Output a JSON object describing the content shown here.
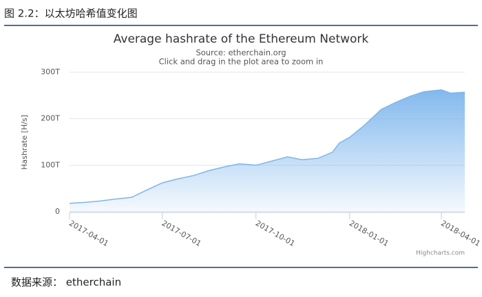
{
  "caption": "图 2.2：以太坊哈希值变化图",
  "source": "数据来源：  etherchain",
  "chart_data": {
    "type": "area",
    "title": "Average hashrate of the Ethereum Network",
    "subtitle": "Source: etherchain.org",
    "note": "Click and drag in the plot area to zoom in",
    "y_label": "Hashrate [H/s]",
    "credits": "Highcharts.com",
    "x": [
      "2017-04-01",
      "2017-04-15",
      "2017-05-01",
      "2017-05-15",
      "2017-06-01",
      "2017-06-15",
      "2017-07-01",
      "2017-07-15",
      "2017-08-01",
      "2017-08-15",
      "2017-09-01",
      "2017-09-15",
      "2017-10-01",
      "2017-10-15",
      "2017-11-01",
      "2017-11-15",
      "2017-12-01",
      "2017-12-15",
      "2017-12-22",
      "2018-01-01",
      "2018-01-15",
      "2018-02-01",
      "2018-02-15",
      "2018-03-01",
      "2018-03-15",
      "2018-04-01",
      "2018-04-10",
      "2018-04-24"
    ],
    "series": [
      {
        "name": "Hashrate",
        "color": "#7cb5ec",
        "values": [
          18,
          20,
          23,
          27,
          31,
          46,
          62,
          70,
          78,
          88,
          97,
          103,
          100,
          108,
          118,
          112,
          115,
          128,
          148,
          160,
          185,
          220,
          235,
          248,
          258,
          262,
          255,
          257
        ]
      }
    ],
    "xlim": [
      "2017-04-01",
      "2018-04-24"
    ],
    "xticks": [
      "2017-04-01",
      "2017-07-01",
      "2017-10-01",
      "2018-01-01",
      "2018-04-01"
    ],
    "ylim": [
      0,
      300
    ],
    "yticks": [
      0,
      {
        "value": 100,
        "label": "100T"
      },
      {
        "value": 200,
        "label": "200T"
      },
      {
        "value": 300,
        "label": "300T"
      }
    ],
    "grid": true
  }
}
